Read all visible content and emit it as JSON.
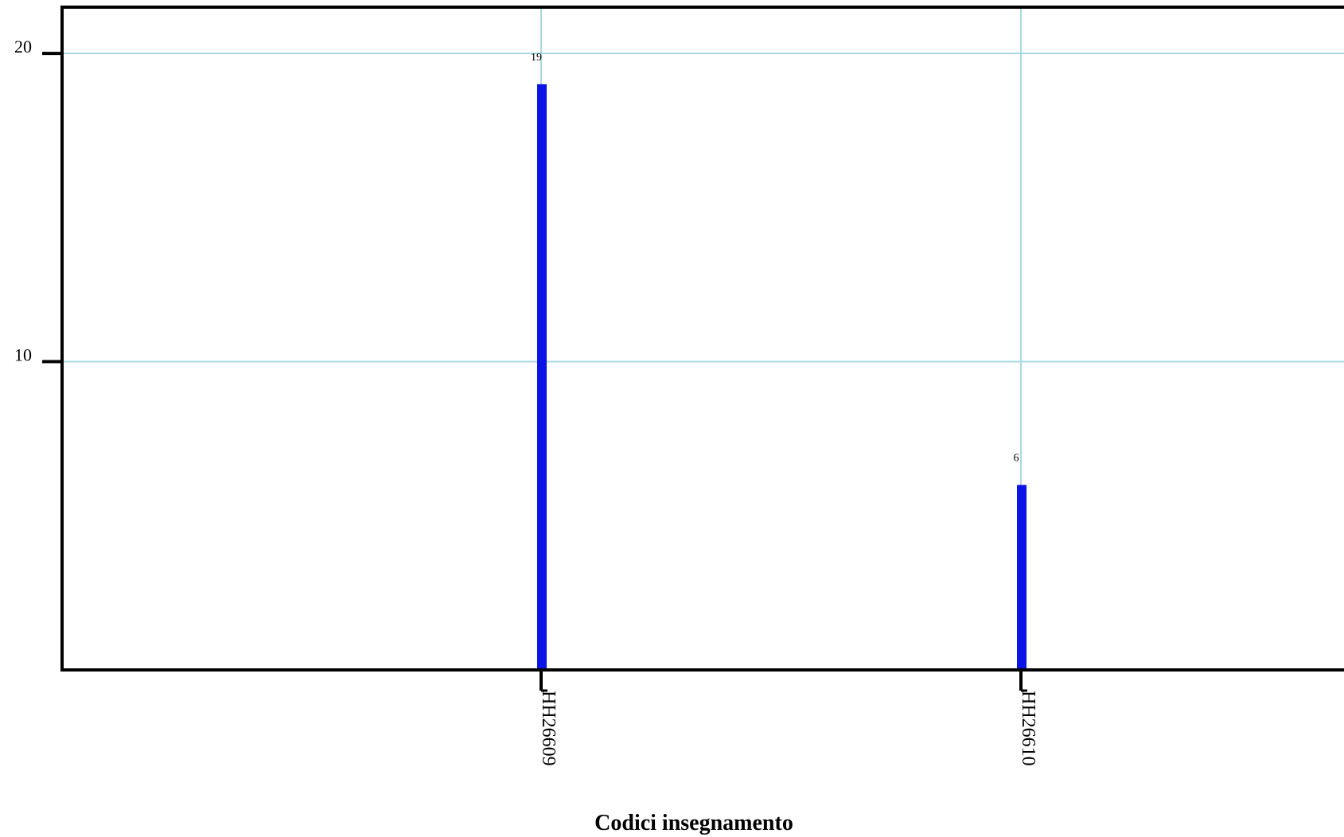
{
  "chart_data": {
    "type": "bar",
    "title": "",
    "xlabel": "Codici insegnamento",
    "ylabel": "",
    "categories": [
      "HH26609",
      "HH26610"
    ],
    "series": [
      {
        "values": [
          19,
          6
        ]
      }
    ],
    "data_labels": [
      "19",
      "6"
    ],
    "y_ticks": [
      10,
      20
    ],
    "y_tick_labels": [
      "10",
      "20"
    ],
    "ylim": [
      0,
      21.5
    ],
    "grid": true,
    "colors": {
      "bar": "#0a14e6",
      "grid": "#a8d8e0",
      "axis": "#000000"
    }
  }
}
